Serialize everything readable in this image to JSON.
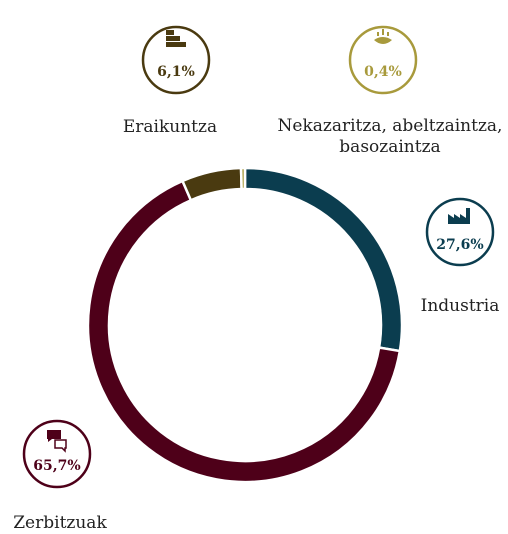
{
  "chart_data": {
    "type": "pie",
    "categories": [
      "Industria",
      "Zerbitzuak",
      "Eraikuntza",
      "Nekazaritza, abeltzaintza, basozaintza"
    ],
    "values": [
      27.6,
      65.7,
      6.1,
      0.4
    ],
    "value_labels": [
      "27,6%",
      "65,7%",
      "6,1%",
      "0,4%"
    ],
    "colors": [
      "#0b3d4f",
      "#4e0019",
      "#4a3a10",
      "#a89a3c"
    ]
  }
}
